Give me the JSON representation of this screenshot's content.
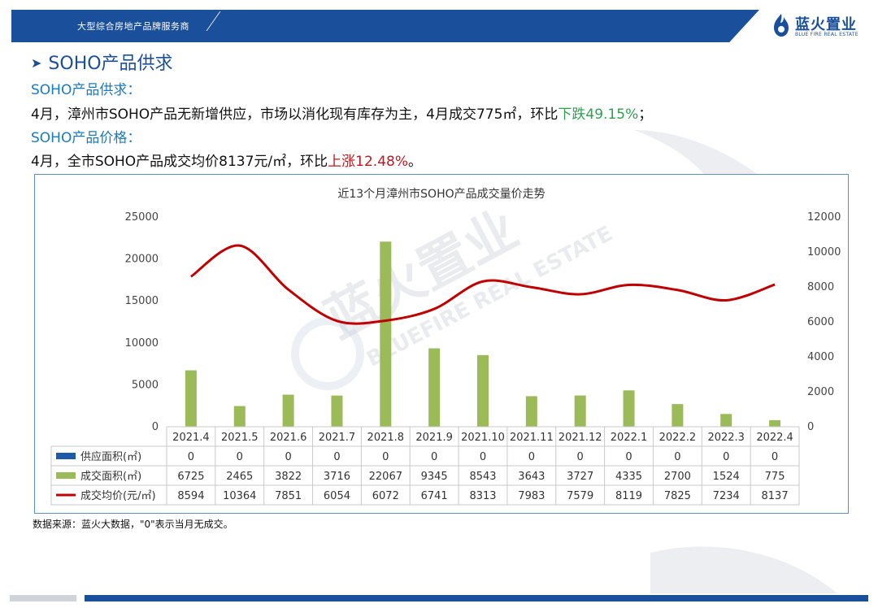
{
  "header": {
    "tagline": "大型综合房地产品牌服务商",
    "logo_cn": "蓝火置业",
    "logo_en": "BLUE FIRE REAL ESTATE"
  },
  "section_title": "SOHO产品供求",
  "supply_demand": {
    "heading": "SOHO产品供求：",
    "text_before": "4月，漳州市SOHO产品无新增供应，市场以消化现有库存为主，4月成交775㎡，环比",
    "highlight": "下跌49.15%",
    "text_after": "；"
  },
  "price": {
    "heading": "SOHO产品价格：",
    "text_before": "4月，全市SOHO产品成交均价8137元/㎡，环比",
    "highlight": "上涨12.48%",
    "text_after": "。"
  },
  "source_note": "数据来源：蓝火大数据，\"0\"表示当月无成交。",
  "watermark": {
    "cn": "蓝火置业",
    "en": "BLUEFIRE REAL ESTATE"
  },
  "colors": {
    "brand": "#1a4f9c",
    "bar": "#9bbb59",
    "line": "#c00000",
    "supply": "#1f5aa8"
  },
  "chart_data": {
    "type": "bar",
    "title": "近13个月漳州市SOHO产品成交量价走势",
    "categories": [
      "2021.4",
      "2021.5",
      "2021.6",
      "2021.7",
      "2021.8",
      "2021.9",
      "2021.10",
      "2021.11",
      "2021.12",
      "2022.1",
      "2022.2",
      "2022.3",
      "2022.4"
    ],
    "series": [
      {
        "name": "供应面积(㎡)",
        "type": "bar",
        "axis": "left",
        "values": [
          0,
          0,
          0,
          0,
          0,
          0,
          0,
          0,
          0,
          0,
          0,
          0,
          0
        ]
      },
      {
        "name": "成交面积(㎡)",
        "type": "bar",
        "axis": "left",
        "values": [
          6725,
          2465,
          3822,
          3716,
          22067,
          9345,
          8543,
          3643,
          3727,
          4335,
          2700,
          1524,
          775
        ]
      },
      {
        "name": "成交均价(元/㎡)",
        "type": "line",
        "axis": "right",
        "values": [
          8594,
          10364,
          7851,
          6054,
          6072,
          6741,
          8313,
          7983,
          7579,
          8119,
          7825,
          7234,
          8137
        ]
      }
    ],
    "left_axis": {
      "ylim": [
        0,
        25000
      ],
      "ticks": [
        "0",
        "5000",
        "10000",
        "15000",
        "20000",
        "25000"
      ]
    },
    "right_axis": {
      "ylim": [
        0,
        12000
      ],
      "ticks": [
        "0",
        "2000",
        "4000",
        "6000",
        "8000",
        "10000",
        "12000"
      ]
    },
    "data_table": true,
    "grid": false
  }
}
